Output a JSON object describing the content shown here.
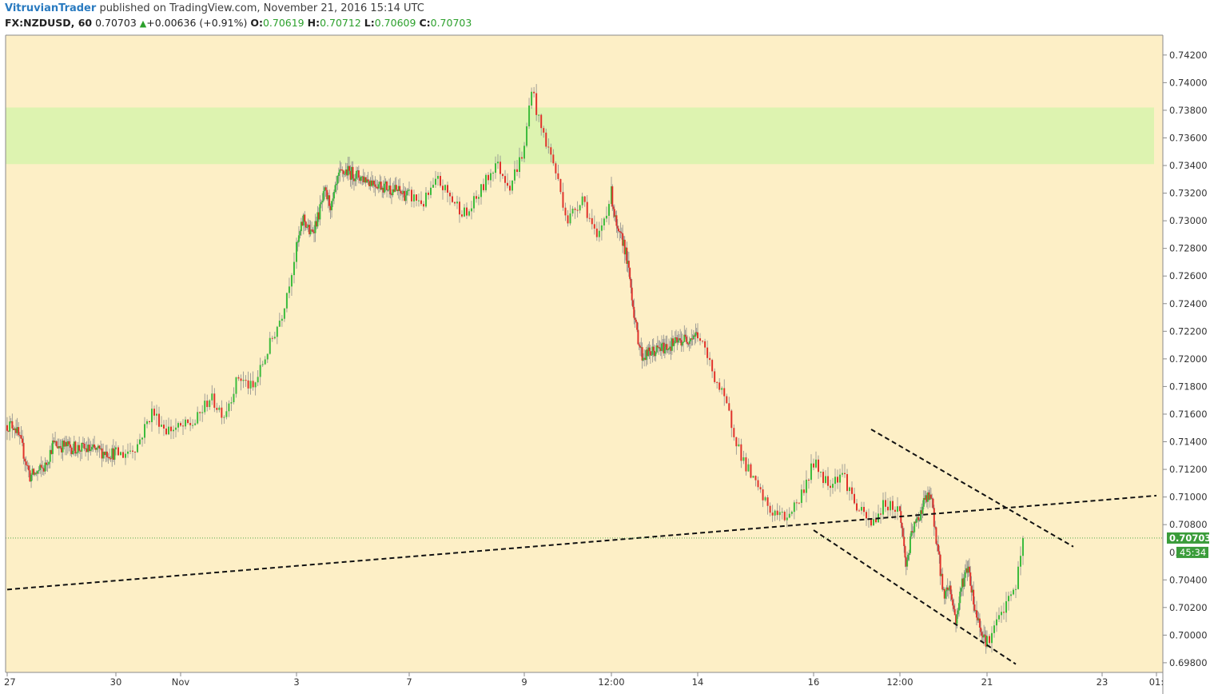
{
  "header": {
    "author": "VitruvianTrader",
    "published_text": "published on TradingView.com, November 21, 2016 15:14 UTC",
    "symbol_interval": "FX:NZDUSD, 60",
    "last_price": "0.70703",
    "change_arrow": "▲",
    "change": "+0.00636 (+0.91%)",
    "open_label": "O:",
    "open": "0.70619",
    "high_label": "H:",
    "high": "0.70712",
    "low_label": "L:",
    "low": "0.70609",
    "close_label": "C:",
    "close": "0.70703"
  },
  "colors": {
    "background": "#fdefc6",
    "up": "#3dbb3d",
    "down": "#e0332c",
    "zone": "#ddf3b0",
    "axis_text": "#333333",
    "price_tag": "#3a9c3a"
  },
  "chart_data": {
    "type": "candlestick",
    "title": "",
    "xlabel": "",
    "ylabel": "",
    "ylim": [
      0.6973,
      0.7428
    ],
    "y_ticks": [
      "0.74200",
      "0.74000",
      "0.73800",
      "0.73600",
      "0.73400",
      "0.73200",
      "0.73000",
      "0.72800",
      "0.72600",
      "0.72400",
      "0.72200",
      "0.72000",
      "0.71800",
      "0.71600",
      "0.71400",
      "0.71200",
      "0.71000",
      "0.70800",
      "0.70400",
      "0.70200",
      "0.70000",
      "0.69800"
    ],
    "x_tick_labels": [
      {
        "label": "27",
        "date": "2016-10-27 07:00"
      },
      {
        "label": "30",
        "date": "2016-10-30 21:00"
      },
      {
        "label": "Nov",
        "date": "2016-11-01 00:00"
      },
      {
        "label": "3",
        "date": "2016-11-03 00:00"
      },
      {
        "label": "7",
        "date": "2016-11-07 00:00"
      },
      {
        "label": "9",
        "date": "2016-11-09 00:00"
      },
      {
        "label": "12:00",
        "date": "2016-11-10 12:00"
      },
      {
        "label": "14",
        "date": "2016-11-14 00:00"
      },
      {
        "label": "16",
        "date": "2016-11-16 00:00"
      },
      {
        "label": "12:00",
        "date": "2016-11-17 12:00"
      },
      {
        "label": "21",
        "date": "2016-11-21 00:00"
      },
      {
        "label": "23",
        "date": "2016-11-23 00:00"
      },
      {
        "label": "01:",
        "date": "2016-11-24 01:00"
      }
    ],
    "price_path": [
      [
        "2016-10-27 07:00",
        0.7152
      ],
      [
        "2016-10-27 13:00",
        0.7152
      ],
      [
        "2016-10-27 19:00",
        0.7135
      ],
      [
        "2016-10-28 01:00",
        0.7115
      ],
      [
        "2016-10-28 07:00",
        0.7118
      ],
      [
        "2016-10-28 13:00",
        0.7122
      ],
      [
        "2016-10-28 19:00",
        0.7138
      ],
      [
        "2016-10-31 00:00",
        0.7131
      ],
      [
        "2016-10-31 06:00",
        0.7138
      ],
      [
        "2016-10-31 12:00",
        0.7162
      ],
      [
        "2016-10-31 18:00",
        0.7149
      ],
      [
        "2016-11-01 00:00",
        0.715
      ],
      [
        "2016-11-01 06:00",
        0.7154
      ],
      [
        "2016-11-01 12:00",
        0.7172
      ],
      [
        "2016-11-01 18:00",
        0.716
      ],
      [
        "2016-11-02 00:00",
        0.7187
      ],
      [
        "2016-11-02 06:00",
        0.7178
      ],
      [
        "2016-11-02 12:00",
        0.7206
      ],
      [
        "2016-11-02 18:00",
        0.7233
      ],
      [
        "2016-11-03 00:00",
        0.728
      ],
      [
        "2016-11-03 06:00",
        0.7302
      ],
      [
        "2016-11-03 12:00",
        0.729
      ],
      [
        "2016-11-03 18:00",
        0.7302
      ],
      [
        "2016-11-04 00:00",
        0.732
      ],
      [
        "2016-11-04 06:00",
        0.731
      ],
      [
        "2016-11-04 12:00",
        0.7332
      ],
      [
        "2016-11-04 18:00",
        0.7336
      ],
      [
        "2016-11-07 00:00",
        0.7318
      ],
      [
        "2016-11-07 06:00",
        0.7313
      ],
      [
        "2016-11-07 12:00",
        0.7329
      ],
      [
        "2016-11-07 18:00",
        0.7315
      ],
      [
        "2016-11-08 00:00",
        0.7304
      ],
      [
        "2016-11-08 06:00",
        0.7322
      ],
      [
        "2016-11-08 12:00",
        0.7342
      ],
      [
        "2016-11-08 18:00",
        0.7326
      ],
      [
        "2016-11-09 00:00",
        0.7352
      ],
      [
        "2016-11-09 03:00",
        0.7398
      ],
      [
        "2016-11-09 06:00",
        0.7372
      ],
      [
        "2016-11-09 12:00",
        0.7342
      ],
      [
        "2016-11-09 18:00",
        0.73
      ],
      [
        "2016-11-10 00:00",
        0.7318
      ],
      [
        "2016-11-10 06:00",
        0.7285
      ],
      [
        "2016-11-10 12:00",
        0.732
      ],
      [
        "2016-11-10 18:00",
        0.729
      ],
      [
        "2016-11-11 00:00",
        0.7285
      ],
      [
        "2016-11-11 06:00",
        0.7258
      ],
      [
        "2016-11-11 12:00",
        0.7222
      ],
      [
        "2016-11-11 18:00",
        0.7202
      ],
      [
        "2016-11-14 00:00",
        0.7218
      ],
      [
        "2016-11-14 06:00",
        0.7192
      ],
      [
        "2016-11-14 12:00",
        0.7165
      ],
      [
        "2016-11-14 18:00",
        0.713
      ],
      [
        "2016-11-15 00:00",
        0.7108
      ],
      [
        "2016-11-15 06:00",
        0.709
      ],
      [
        "2016-11-15 12:00",
        0.7085
      ],
      [
        "2016-11-15 18:00",
        0.7098
      ],
      [
        "2016-11-16 00:00",
        0.7125
      ],
      [
        "2016-11-16 06:00",
        0.711
      ],
      [
        "2016-11-16 12:00",
        0.7118
      ],
      [
        "2016-11-16 18:00",
        0.7092
      ],
      [
        "2016-11-17 00:00",
        0.708
      ],
      [
        "2016-11-17 06:00",
        0.7096
      ],
      [
        "2016-11-17 12:00",
        0.709
      ],
      [
        "2016-11-17 18:00",
        0.705
      ],
      [
        "2016-11-18 00:00",
        0.7075
      ],
      [
        "2016-11-18 06:00",
        0.7085
      ],
      [
        "2016-11-18 12:00",
        0.7098
      ],
      [
        "2016-11-18 18:00",
        0.71
      ],
      [
        "2016-11-19 00:00",
        0.7065
      ],
      [
        "2016-11-19 06:00",
        0.703
      ],
      [
        "2016-11-19 12:00",
        0.7035
      ],
      [
        "2016-11-19 18:00",
        0.701
      ],
      [
        "2016-11-20 00:00",
        0.7038
      ],
      [
        "2016-11-20 06:00",
        0.705
      ],
      [
        "2016-11-20 12:00",
        0.702
      ],
      [
        "2016-11-20 18:00",
        0.7005
      ],
      [
        "2016-11-21 00:00",
        0.6995
      ],
      [
        "2016-11-21 06:00",
        0.7015
      ],
      [
        "2016-11-21 12:00",
        0.7035
      ],
      [
        "2016-11-21 15:00",
        0.70703
      ]
    ],
    "resistance_zone": {
      "from": 0.7341,
      "to": 0.7382
    },
    "trendlines": [
      {
        "name": "rising-support",
        "start": [
          "2016-10-27 07:00",
          0.7033
        ],
        "end": [
          "2016-11-24 01:00",
          0.7101
        ]
      },
      {
        "name": "channel-upper",
        "start": [
          "2016-11-17 00:00",
          0.7149
        ],
        "end": [
          "2016-11-22 12:00",
          0.7064
        ]
      },
      {
        "name": "channel-lower",
        "start": [
          "2016-11-16 00:00",
          0.7076
        ],
        "end": [
          "2016-11-21 12:00",
          0.6979
        ]
      }
    ],
    "last_price": {
      "label": "0.70703",
      "value": 0.70703
    },
    "countdown": "45:34",
    "countdown_axis_prefix": "0."
  }
}
